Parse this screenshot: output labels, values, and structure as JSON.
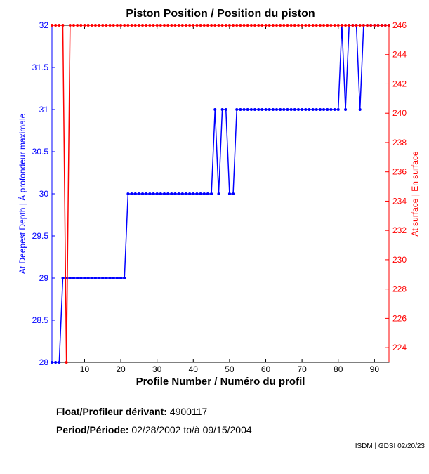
{
  "chart_data": {
    "type": "line",
    "title": "Piston Position / Position du piston",
    "xlabel": "Profile Number / Numéro du profil",
    "ylabel_left": "At Deepest Depth | À profondeur maximale",
    "ylabel_right": "At surface | En surface",
    "xlim": [
      1,
      94
    ],
    "ylim_left": [
      28,
      32
    ],
    "ylim_right": [
      223,
      246
    ],
    "xticks": [
      10,
      20,
      30,
      40,
      50,
      60,
      70,
      80,
      90
    ],
    "yticks_left": [
      28,
      28.5,
      29,
      29.5,
      30,
      30.5,
      31,
      31.5,
      32
    ],
    "yticks_right": [
      224,
      226,
      228,
      230,
      232,
      234,
      236,
      238,
      240,
      242,
      244,
      246
    ],
    "grid": false,
    "series": [
      {
        "axis": "left",
        "color": "#0000ff",
        "values": [
          28,
          28,
          28,
          29,
          29,
          29,
          29,
          29,
          29,
          29,
          29,
          29,
          29,
          29,
          29,
          29,
          29,
          29,
          29,
          29,
          29,
          30,
          30,
          30,
          30,
          30,
          30,
          30,
          30,
          30,
          30,
          30,
          30,
          30,
          30,
          30,
          30,
          30,
          30,
          30,
          30,
          30,
          30,
          30,
          30,
          31,
          30,
          31,
          31,
          30,
          30,
          31,
          31,
          31,
          31,
          31,
          31,
          31,
          31,
          31,
          31,
          31,
          31,
          31,
          31,
          31,
          31,
          31,
          31,
          31,
          31,
          31,
          31,
          31,
          31,
          31,
          31,
          31,
          31,
          31,
          32,
          31,
          32,
          32,
          32,
          31,
          32,
          32,
          32,
          32,
          32,
          32,
          32,
          32
        ]
      },
      {
        "axis": "right",
        "color": "#ff0000",
        "values": [
          246,
          246,
          246,
          246,
          223,
          246,
          246,
          246,
          246,
          246,
          246,
          246,
          246,
          246,
          246,
          246,
          246,
          246,
          246,
          246,
          246,
          246,
          246,
          246,
          246,
          246,
          246,
          246,
          246,
          246,
          246,
          246,
          246,
          246,
          246,
          246,
          246,
          246,
          246,
          246,
          246,
          246,
          246,
          246,
          246,
          246,
          246,
          246,
          246,
          246,
          246,
          246,
          246,
          246,
          246,
          246,
          246,
          246,
          246,
          246,
          246,
          246,
          246,
          246,
          246,
          246,
          246,
          246,
          246,
          246,
          246,
          246,
          246,
          246,
          246,
          246,
          246,
          246,
          246,
          246,
          246,
          246,
          246,
          246,
          246,
          246,
          246,
          246,
          246,
          246,
          246,
          246,
          246,
          246
        ]
      }
    ]
  },
  "info": {
    "float_label": "Float/Profileur dérivant:",
    "float_value": "4900117",
    "period_label": "Period/Période:",
    "period_start": "02/28/2002",
    "period_sep": "to/à",
    "period_end": "09/15/2004",
    "credit": "ISDM | GDSI 02/20/23"
  }
}
